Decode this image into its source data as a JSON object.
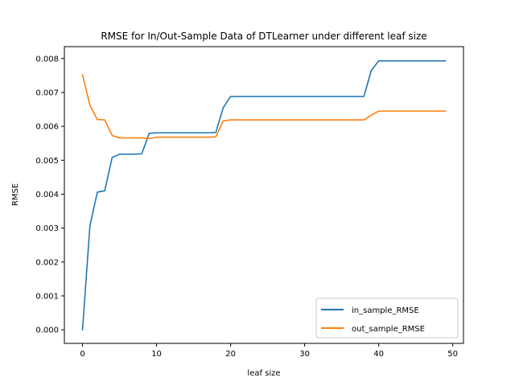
{
  "chart_data": {
    "type": "line",
    "title": "RMSE for In/Out-Sample Data of DTLearner under different leaf size",
    "xlabel": "leaf size",
    "ylabel": "RMSE",
    "xlim": [
      -2.45,
      51.45
    ],
    "ylim": [
      -0.0004,
      0.00835
    ],
    "xticks": [
      "0",
      "10",
      "20",
      "30",
      "40",
      "50"
    ],
    "yticks": [
      "0.000",
      "0.001",
      "0.002",
      "0.003",
      "0.004",
      "0.005",
      "0.006",
      "0.007",
      "0.008"
    ],
    "legend_position": "lower-right",
    "grid": false,
    "series": [
      {
        "name": "in_sample_RMSE",
        "color": "#1f77b4",
        "x": [
          0,
          1,
          2,
          3,
          4,
          5,
          6,
          7,
          8,
          9,
          10,
          11,
          12,
          13,
          14,
          15,
          16,
          17,
          18,
          19,
          20,
          21,
          22,
          23,
          24,
          25,
          26,
          27,
          28,
          29,
          30,
          31,
          32,
          33,
          34,
          35,
          36,
          37,
          38,
          39,
          40,
          41,
          42,
          43,
          44,
          45,
          46,
          47,
          48,
          49
        ],
        "y": [
          0.0,
          0.00307,
          0.00406,
          0.0041,
          0.00508,
          0.00518,
          0.00518,
          0.00518,
          0.00519,
          0.00579,
          0.00581,
          0.00581,
          0.00581,
          0.00581,
          0.00581,
          0.00581,
          0.00581,
          0.00581,
          0.00582,
          0.00655,
          0.00688,
          0.00688,
          0.00688,
          0.00688,
          0.00688,
          0.00688,
          0.00688,
          0.00688,
          0.00688,
          0.00688,
          0.00688,
          0.00688,
          0.00688,
          0.00688,
          0.00688,
          0.00688,
          0.00688,
          0.00688,
          0.00688,
          0.00765,
          0.00793,
          0.00793,
          0.00793,
          0.00793,
          0.00793,
          0.00793,
          0.00793,
          0.00793,
          0.00793,
          0.00793
        ]
      },
      {
        "name": "out_sample_RMSE",
        "color": "#ff7f0e",
        "x": [
          0,
          1,
          2,
          3,
          4,
          5,
          6,
          7,
          8,
          9,
          10,
          11,
          12,
          13,
          14,
          15,
          16,
          17,
          18,
          19,
          20,
          21,
          22,
          23,
          24,
          25,
          26,
          27,
          28,
          29,
          30,
          31,
          32,
          33,
          34,
          35,
          36,
          37,
          38,
          39,
          40,
          41,
          42,
          43,
          44,
          45,
          46,
          47,
          48,
          49
        ],
        "y": [
          0.00752,
          0.00662,
          0.0062,
          0.00619,
          0.00573,
          0.00566,
          0.00566,
          0.00566,
          0.00566,
          0.00564,
          0.00568,
          0.00568,
          0.00568,
          0.00568,
          0.00568,
          0.00568,
          0.00568,
          0.00568,
          0.00569,
          0.00616,
          0.00619,
          0.00619,
          0.00619,
          0.00619,
          0.00619,
          0.00619,
          0.00619,
          0.00619,
          0.00619,
          0.00619,
          0.00619,
          0.00619,
          0.00619,
          0.00619,
          0.00619,
          0.00619,
          0.00619,
          0.00619,
          0.00619,
          0.00633,
          0.00645,
          0.00645,
          0.00645,
          0.00645,
          0.00645,
          0.00645,
          0.00645,
          0.00645,
          0.00645,
          0.00645
        ]
      }
    ]
  }
}
